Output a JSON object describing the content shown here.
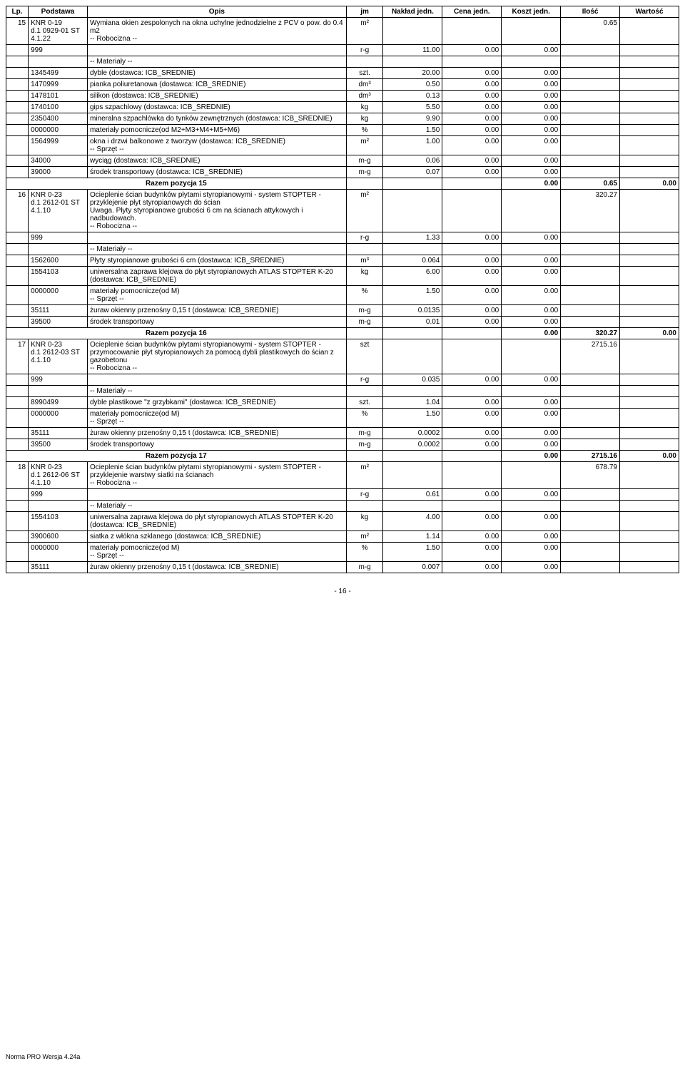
{
  "headers": {
    "lp": "Lp.",
    "podstawa": "Podstawa",
    "opis": "Opis",
    "jm": "jm",
    "naklad": "Nakład jedn.",
    "cena": "Cena jedn.",
    "koszt": "Koszt jedn.",
    "ilosc": "Ilość",
    "wartosc": "Wartość"
  },
  "rows": [
    {
      "type": "main",
      "lp": "15",
      "pod": "KNR 0-19\nd.1 0929-01 ST\n4.1.22",
      "opis": "Wymiana okien zespolonych na okna uchylne jednodzielne z PCV o pow. do 0.4 m2\n-- Robocizna --",
      "jm": "m²",
      "nak": "",
      "cena": "",
      "koszt": "",
      "ilosc": "0.65",
      "wart": ""
    },
    {
      "type": "sub",
      "lp": "",
      "pod": "999",
      "opis": "",
      "jm": "r-g",
      "nak": "11.00",
      "cena": "0.00",
      "koszt": "0.00",
      "ilosc": "",
      "wart": ""
    },
    {
      "type": "sub",
      "lp": "",
      "pod": "",
      "opis": "-- Materiały --",
      "jm": "",
      "nak": "",
      "cena": "",
      "koszt": "",
      "ilosc": "",
      "wart": ""
    },
    {
      "type": "sub",
      "lp": "",
      "pod": "1345499",
      "opis": "dyble (dostawca: ICB_SREDNIE)",
      "jm": "szt.",
      "nak": "20.00",
      "cena": "0.00",
      "koszt": "0.00",
      "ilosc": "",
      "wart": ""
    },
    {
      "type": "sub",
      "lp": "",
      "pod": "1470999",
      "opis": "pianka poliuretanowa (dostawca: ICB_SREDNIE)",
      "jm": "dm³",
      "nak": "0.50",
      "cena": "0.00",
      "koszt": "0.00",
      "ilosc": "",
      "wart": ""
    },
    {
      "type": "sub",
      "lp": "",
      "pod": "1478101",
      "opis": "silikon (dostawca: ICB_SREDNIE)",
      "jm": "dm³",
      "nak": "0.13",
      "cena": "0.00",
      "koszt": "0.00",
      "ilosc": "",
      "wart": ""
    },
    {
      "type": "sub",
      "lp": "",
      "pod": "1740100",
      "opis": "gips szpachlowy (dostawca: ICB_SREDNIE)",
      "jm": "kg",
      "nak": "5.50",
      "cena": "0.00",
      "koszt": "0.00",
      "ilosc": "",
      "wart": ""
    },
    {
      "type": "sub",
      "lp": "",
      "pod": "2350400",
      "opis": "mineralna szpachlówka do tynków zewnętrznych (dostawca: ICB_SREDNIE)",
      "jm": "kg",
      "nak": "9.90",
      "cena": "0.00",
      "koszt": "0.00",
      "ilosc": "",
      "wart": ""
    },
    {
      "type": "sub",
      "lp": "",
      "pod": "0000000",
      "opis": "materiały pomocnicze(od M2+M3+M4+M5+M6)",
      "jm": "%",
      "nak": "1.50",
      "cena": "0.00",
      "koszt": "0.00",
      "ilosc": "",
      "wart": ""
    },
    {
      "type": "sub",
      "lp": "",
      "pod": "1564999",
      "opis": "okna i drzwi balkonowe z tworzyw (dostawca: ICB_SREDNIE)\n-- Sprzęt --",
      "jm": "m²",
      "nak": "1.00",
      "cena": "0.00",
      "koszt": "0.00",
      "ilosc": "",
      "wart": ""
    },
    {
      "type": "sub",
      "lp": "",
      "pod": "34000",
      "opis": "wyciąg (dostawca: ICB_SREDNIE)",
      "jm": "m-g",
      "nak": "0.06",
      "cena": "0.00",
      "koszt": "0.00",
      "ilosc": "",
      "wart": ""
    },
    {
      "type": "sub",
      "lp": "",
      "pod": "39000",
      "opis": "środek transportowy (dostawca: ICB_SREDNIE)",
      "jm": "m-g",
      "nak": "0.07",
      "cena": "0.00",
      "koszt": "0.00",
      "ilosc": "",
      "wart": ""
    },
    {
      "type": "sum",
      "opis": "Razem pozycja 15",
      "koszt": "0.00",
      "ilosc": "0.65",
      "wart": "0.00"
    },
    {
      "type": "main",
      "lp": "16",
      "pod": "KNR 0-23\nd.1 2612-01 ST\n4.1.10",
      "opis": "Ocieplenie ścian budynków płytami styropianowymi - system STOPTER - przyklejenie płyt styropianowych do ścian\nUwaga. Płyty styropianowe grubości 6 cm na ścianach attykowych i nadbudowach.\n-- Robocizna --",
      "jm": "m²",
      "nak": "",
      "cena": "",
      "koszt": "",
      "ilosc": "320.27",
      "wart": ""
    },
    {
      "type": "sub",
      "lp": "",
      "pod": "999",
      "opis": "",
      "jm": "r-g",
      "nak": "1.33",
      "cena": "0.00",
      "koszt": "0.00",
      "ilosc": "",
      "wart": ""
    },
    {
      "type": "sub",
      "lp": "",
      "pod": "",
      "opis": "-- Materiały --",
      "jm": "",
      "nak": "",
      "cena": "",
      "koszt": "",
      "ilosc": "",
      "wart": ""
    },
    {
      "type": "sub",
      "lp": "",
      "pod": "1562600",
      "opis": "Płyty styropianowe grubości 6 cm (dostawca: ICB_SREDNIE)",
      "jm": "m³",
      "nak": "0.064",
      "cena": "0.00",
      "koszt": "0.00",
      "ilosc": "",
      "wart": ""
    },
    {
      "type": "sub",
      "lp": "",
      "pod": "1554103",
      "opis": "uniwersalna zaprawa klejowa do płyt styropianowych ATLAS STOPTER K-20 (dostawca: ICB_SREDNIE)",
      "jm": "kg",
      "nak": "6.00",
      "cena": "0.00",
      "koszt": "0.00",
      "ilosc": "",
      "wart": ""
    },
    {
      "type": "sub",
      "lp": "",
      "pod": "0000000",
      "opis": "materiały pomocnicze(od M)\n-- Sprzęt --",
      "jm": "%",
      "nak": "1.50",
      "cena": "0.00",
      "koszt": "0.00",
      "ilosc": "",
      "wart": ""
    },
    {
      "type": "sub",
      "lp": "",
      "pod": "35111",
      "opis": "żuraw okienny przenośny 0,15 t (dostawca: ICB_SREDNIE)",
      "jm": "m-g",
      "nak": "0.0135",
      "cena": "0.00",
      "koszt": "0.00",
      "ilosc": "",
      "wart": ""
    },
    {
      "type": "sub",
      "lp": "",
      "pod": "39500",
      "opis": "środek transportowy",
      "jm": "m-g",
      "nak": "0.01",
      "cena": "0.00",
      "koszt": "0.00",
      "ilosc": "",
      "wart": ""
    },
    {
      "type": "sum",
      "opis": "Razem pozycja 16",
      "koszt": "0.00",
      "ilosc": "320.27",
      "wart": "0.00"
    },
    {
      "type": "main",
      "lp": "17",
      "pod": "KNR 0-23\nd.1 2612-03 ST\n4.1.10",
      "opis": "Ocieplenie ścian budynków płytami styropianowymi - system STOPTER - przymocowanie płyt styropianowych za pomocą dybli plastikowych do ścian z gazobetonu\n-- Robocizna --",
      "jm": "szt",
      "nak": "",
      "cena": "",
      "koszt": "",
      "ilosc": "2715.16",
      "wart": ""
    },
    {
      "type": "sub",
      "lp": "",
      "pod": "999",
      "opis": "",
      "jm": "r-g",
      "nak": "0.035",
      "cena": "0.00",
      "koszt": "0.00",
      "ilosc": "",
      "wart": ""
    },
    {
      "type": "sub",
      "lp": "",
      "pod": "",
      "opis": "-- Materiały --",
      "jm": "",
      "nak": "",
      "cena": "",
      "koszt": "",
      "ilosc": "",
      "wart": ""
    },
    {
      "type": "sub",
      "lp": "",
      "pod": "8990499",
      "opis": "dyble plastikowe \"z grzybkami\" (dostawca: ICB_SREDNIE)",
      "jm": "szt.",
      "nak": "1.04",
      "cena": "0.00",
      "koszt": "0.00",
      "ilosc": "",
      "wart": ""
    },
    {
      "type": "sub",
      "lp": "",
      "pod": "0000000",
      "opis": "materiały pomocnicze(od M)\n-- Sprzęt --",
      "jm": "%",
      "nak": "1.50",
      "cena": "0.00",
      "koszt": "0.00",
      "ilosc": "",
      "wart": ""
    },
    {
      "type": "sub",
      "lp": "",
      "pod": "35111",
      "opis": "żuraw okienny przenośny 0,15 t (dostawca: ICB_SREDNIE)",
      "jm": "m-g",
      "nak": "0.0002",
      "cena": "0.00",
      "koszt": "0.00",
      "ilosc": "",
      "wart": ""
    },
    {
      "type": "sub",
      "lp": "",
      "pod": "39500",
      "opis": "środek transportowy",
      "jm": "m-g",
      "nak": "0.0002",
      "cena": "0.00",
      "koszt": "0.00",
      "ilosc": "",
      "wart": ""
    },
    {
      "type": "sum",
      "opis": "Razem pozycja 17",
      "koszt": "0.00",
      "ilosc": "2715.16",
      "wart": "0.00"
    },
    {
      "type": "main",
      "lp": "18",
      "pod": "KNR 0-23\nd.1 2612-06 ST\n4.1.10",
      "opis": "Ocieplenie ścian budynków płytami styropianowymi - system STOPTER - przyklejenie warstwy siatki na ścianach\n-- Robocizna --",
      "jm": "m²",
      "nak": "",
      "cena": "",
      "koszt": "",
      "ilosc": "678.79",
      "wart": ""
    },
    {
      "type": "sub",
      "lp": "",
      "pod": "999",
      "opis": "",
      "jm": "r-g",
      "nak": "0.61",
      "cena": "0.00",
      "koszt": "0.00",
      "ilosc": "",
      "wart": ""
    },
    {
      "type": "sub",
      "lp": "",
      "pod": "",
      "opis": "-- Materiały --",
      "jm": "",
      "nak": "",
      "cena": "",
      "koszt": "",
      "ilosc": "",
      "wart": ""
    },
    {
      "type": "sub",
      "lp": "",
      "pod": "1554103",
      "opis": "uniwersalna zaprawa klejowa do płyt styropianowych ATLAS STOPTER K-20 (dostawca: ICB_SREDNIE)",
      "jm": "kg",
      "nak": "4.00",
      "cena": "0.00",
      "koszt": "0.00",
      "ilosc": "",
      "wart": ""
    },
    {
      "type": "sub",
      "lp": "",
      "pod": "3900600",
      "opis": "siatka z włókna szklanego (dostawca: ICB_SREDNIE)",
      "jm": "m²",
      "nak": "1.14",
      "cena": "0.00",
      "koszt": "0.00",
      "ilosc": "",
      "wart": ""
    },
    {
      "type": "sub",
      "lp": "",
      "pod": "0000000",
      "opis": "materiały pomocnicze(od M)\n-- Sprzęt --",
      "jm": "%",
      "nak": "1.50",
      "cena": "0.00",
      "koszt": "0.00",
      "ilosc": "",
      "wart": ""
    },
    {
      "type": "sub",
      "lp": "",
      "pod": "35111",
      "opis": "żuraw okienny przenośny 0,15 t (dostawca: ICB_SREDNIE)",
      "jm": "m-g",
      "nak": "0.007",
      "cena": "0.00",
      "koszt": "0.00",
      "ilosc": "",
      "wart": ""
    }
  ],
  "footer": {
    "page": "- 16 -",
    "note": "Norma PRO Wersja 4.24a"
  }
}
